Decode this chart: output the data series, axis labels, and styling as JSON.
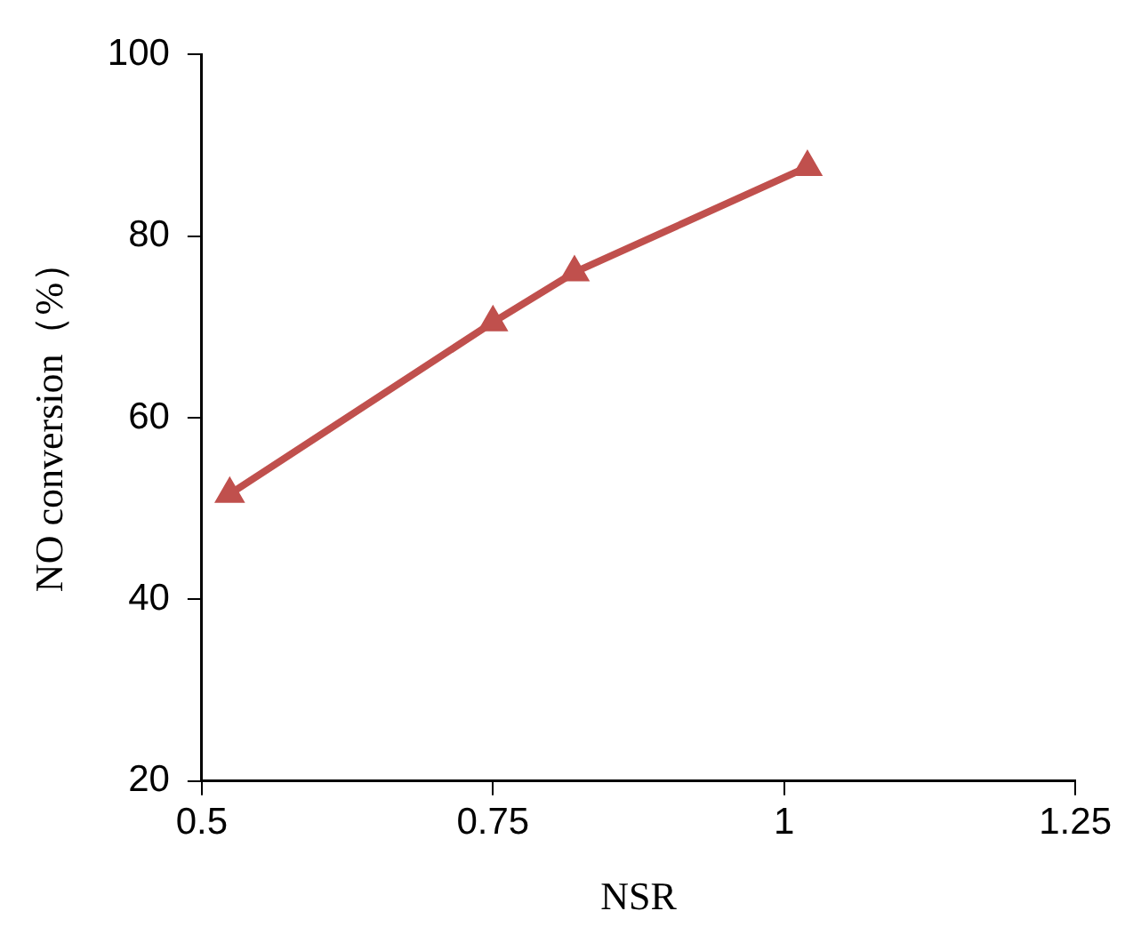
{
  "chart_data": {
    "type": "line",
    "xlabel": "NSR",
    "ylabel": "NO conversion（%）",
    "x": [
      0.524,
      0.75,
      0.82,
      1.02
    ],
    "series": [
      {
        "color": "#c0504d",
        "values": [
          51.6,
          70.5,
          76,
          87.6
        ]
      }
    ],
    "xlim": [
      0.5,
      1.25
    ],
    "xticks": [
      {
        "value": 0.5,
        "label": "0.5"
      },
      {
        "value": 0.75,
        "label": "0.75"
      },
      {
        "value": 1,
        "label": "1"
      },
      {
        "value": 1.25,
        "label": "1.25"
      }
    ],
    "ylim": [
      20,
      100
    ],
    "yticks": [
      20,
      40,
      60,
      80,
      100
    ],
    "grid": false,
    "legend": false,
    "marker": "triangle",
    "line_style": "solid"
  }
}
